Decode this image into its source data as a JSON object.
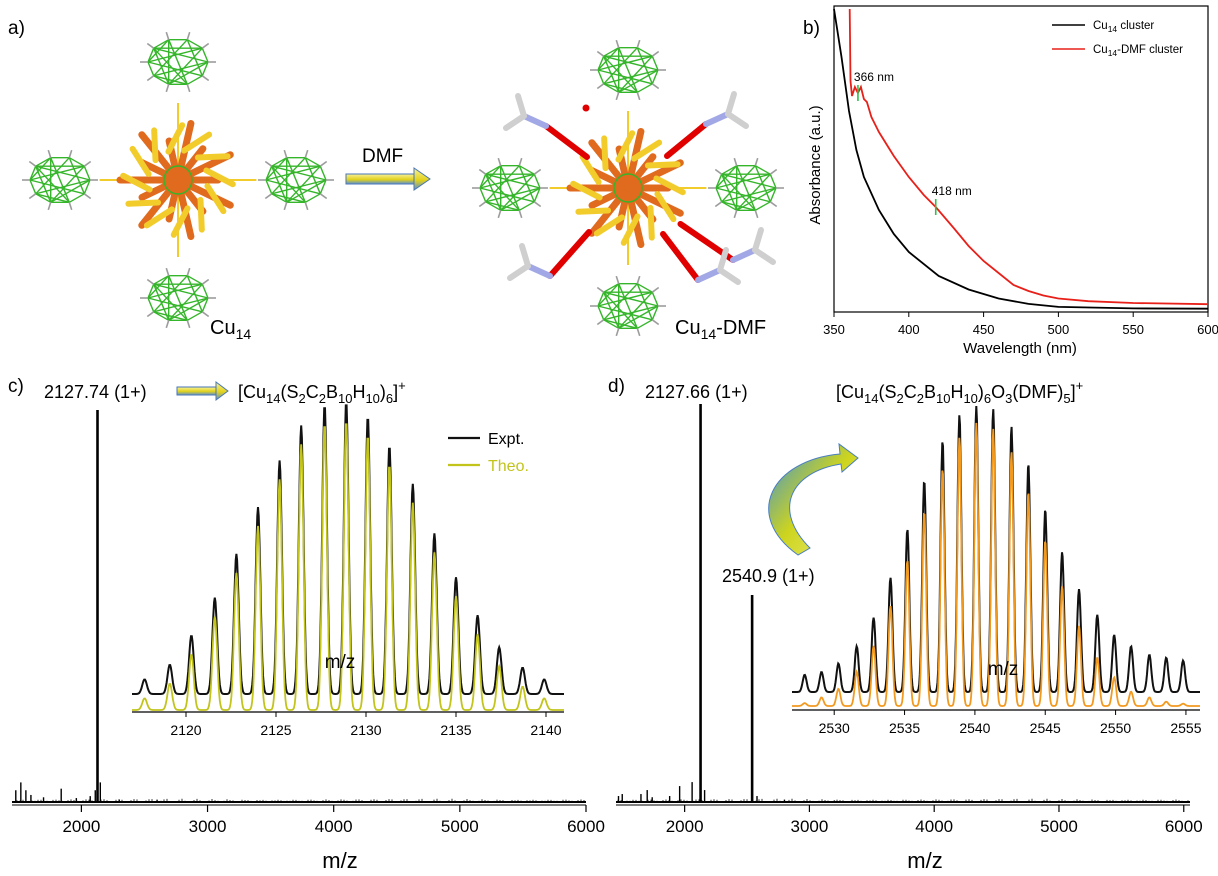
{
  "panel_labels": {
    "a": "a)",
    "b": "b)",
    "c": "c)",
    "d": "d)"
  },
  "panel_a": {
    "left_label_main": "Cu",
    "left_label_sub": "14",
    "arrow_label": "DMF",
    "right_label_main": "Cu",
    "right_label_sub": "14",
    "right_label_suffix": "-DMF",
    "colors": {
      "copper": "#e06a1e",
      "sulfur": "#f2cc2a",
      "boron": "#35b52a",
      "carbon": "#9c9c9c",
      "oxygen": "#e00000",
      "nitrogen": "#a2a8e6"
    }
  },
  "chart_data": [
    {
      "id": "b",
      "type": "line",
      "xlabel": "Wavelength (nm)",
      "ylabel": "Absorbance (a.u.)",
      "xlim": [
        350,
        600
      ],
      "ylim": [
        0,
        1
      ],
      "xticks": [
        350,
        400,
        450,
        500,
        550,
        600
      ],
      "legend_position": "top-right",
      "series": [
        {
          "name": "Cu14 cluster",
          "name_main": "Cu",
          "name_sub": "14",
          "name_rest": " cluster",
          "color": "#000000",
          "x": [
            350,
            355,
            360,
            365,
            370,
            380,
            390,
            400,
            420,
            440,
            460,
            480,
            500,
            550,
            600
          ],
          "y": [
            1.0,
            0.84,
            0.66,
            0.53,
            0.44,
            0.33,
            0.25,
            0.19,
            0.11,
            0.065,
            0.035,
            0.017,
            0.007,
            0.002,
            0.001
          ]
        },
        {
          "name": "Cu14-DMF cluster",
          "name_main": "Cu",
          "name_sub": "14",
          "name_rest": "-DMF cluster",
          "color": "#e8201a",
          "x": [
            360.5,
            361,
            362,
            364,
            366,
            368,
            370,
            372,
            375,
            380,
            390,
            400,
            410,
            418,
            430,
            440,
            450,
            460,
            470,
            480,
            490,
            500,
            520,
            550,
            600
          ],
          "y": [
            1.0,
            0.76,
            0.71,
            0.74,
            0.72,
            0.74,
            0.7,
            0.69,
            0.64,
            0.59,
            0.51,
            0.44,
            0.38,
            0.34,
            0.27,
            0.21,
            0.16,
            0.12,
            0.08,
            0.06,
            0.045,
            0.035,
            0.026,
            0.02,
            0.016
          ]
        }
      ],
      "annotations": [
        {
          "text": "366 nm",
          "x": 366
        },
        {
          "text": "418 nm",
          "x": 418
        }
      ]
    },
    {
      "id": "c",
      "type": "line",
      "xlabel": "m/z",
      "xlim": [
        1450,
        6000
      ],
      "xticks": [
        2000,
        3000,
        4000,
        5000,
        6000
      ],
      "peak_label": "2127.74 (1+)",
      "formula": {
        "parts": [
          [
            "[Cu",
            "n"
          ],
          [
            "14",
            "sub"
          ],
          [
            "(S",
            "n"
          ],
          [
            "2",
            "sub"
          ],
          [
            "C",
            "n"
          ],
          [
            "2",
            "sub"
          ],
          [
            "B",
            "n"
          ],
          [
            "10",
            "sub"
          ],
          [
            "H",
            "n"
          ],
          [
            "10",
            "sub"
          ],
          [
            ")",
            "n"
          ],
          [
            "6",
            "sub"
          ],
          [
            "]",
            "n"
          ],
          [
            "+",
            "sup"
          ]
        ]
      },
      "peaks": [
        [
          1480,
          0.03
        ],
        [
          1520,
          0.05
        ],
        [
          1560,
          0.03
        ],
        [
          1600,
          0.018
        ],
        [
          1700,
          0.012
        ],
        [
          1840,
          0.034
        ],
        [
          1960,
          0.01
        ],
        [
          2070,
          0.015
        ],
        [
          2110,
          0.03
        ],
        [
          2127.74,
          1.0
        ],
        [
          2150,
          0.05
        ],
        [
          2300,
          0.006
        ],
        [
          2600,
          0.006
        ]
      ],
      "inset": {
        "xlabel": "m/z",
        "xlim": [
          2117,
          2141
        ],
        "xticks": [
          2120,
          2125,
          2130,
          2135,
          2140
        ],
        "legend": [
          {
            "name": "Expt.",
            "color": "#111111"
          },
          {
            "name": "Theo.",
            "color": "#c2c41c"
          }
        ],
        "x": [
          2117.7,
          2119.1,
          2120.3,
          2121.6,
          2122.8,
          2124.0,
          2125.2,
          2126.4,
          2127.7,
          2128.9,
          2130.1,
          2131.3,
          2132.6,
          2133.8,
          2135.0,
          2136.2,
          2137.4,
          2138.7,
          2139.9
        ],
        "expt": [
          0.05,
          0.1,
          0.2,
          0.33,
          0.48,
          0.64,
          0.8,
          0.92,
          0.99,
          1.0,
          0.95,
          0.85,
          0.72,
          0.55,
          0.4,
          0.27,
          0.16,
          0.09,
          0.05
        ],
        "theo": [
          0.04,
          0.09,
          0.19,
          0.32,
          0.47,
          0.63,
          0.79,
          0.91,
          0.98,
          0.99,
          0.94,
          0.84,
          0.71,
          0.54,
          0.39,
          0.26,
          0.15,
          0.08,
          0.04
        ],
        "colors": {
          "expt": "#111111",
          "theo": "#c2c41c"
        }
      }
    },
    {
      "id": "d",
      "type": "line",
      "xlabel": "m/z",
      "xlim": [
        1450,
        6050
      ],
      "xticks": [
        2000,
        3000,
        4000,
        5000,
        6000
      ],
      "peak_label_1": "2127.66 (1+)",
      "peak_label_2": "2540.9 (1+)",
      "formula": {
        "parts": [
          [
            "[Cu",
            "n"
          ],
          [
            "14",
            "sub"
          ],
          [
            "(S",
            "n"
          ],
          [
            "2",
            "sub"
          ],
          [
            "C",
            "n"
          ],
          [
            "2",
            "sub"
          ],
          [
            "B",
            "n"
          ],
          [
            "10",
            "sub"
          ],
          [
            "H",
            "n"
          ],
          [
            "10",
            "sub"
          ],
          [
            ")",
            "n"
          ],
          [
            "6",
            "sub"
          ],
          [
            "O",
            "n"
          ],
          [
            "3",
            "sub"
          ],
          [
            "(DMF)",
            "n"
          ],
          [
            "5",
            "sub"
          ],
          [
            "]",
            "n"
          ],
          [
            "+",
            "sup"
          ]
        ]
      },
      "peaks": [
        [
          1470,
          0.015
        ],
        [
          1500,
          0.02
        ],
        [
          1650,
          0.02
        ],
        [
          1700,
          0.03
        ],
        [
          1740,
          0.012
        ],
        [
          1880,
          0.015
        ],
        [
          1960,
          0.04
        ],
        [
          2060,
          0.05
        ],
        [
          2127.66,
          1.0
        ],
        [
          2160,
          0.03
        ],
        [
          2540.9,
          0.52
        ],
        [
          2580,
          0.015
        ],
        [
          2800,
          0.006
        ],
        [
          3200,
          0.004
        ]
      ],
      "inset": {
        "xlabel": "m/z",
        "xlim": [
          2527,
          2556
        ],
        "xticks": [
          2530,
          2535,
          2540,
          2545,
          2550,
          2555
        ],
        "x": [
          2527.9,
          2529.1,
          2530.3,
          2531.6,
          2532.8,
          2534.0,
          2535.2,
          2536.4,
          2537.7,
          2538.9,
          2540.1,
          2541.3,
          2542.6,
          2543.8,
          2545.0,
          2546.2,
          2547.4,
          2548.7,
          2549.9,
          2551.1,
          2552.4,
          2553.6,
          2554.8
        ],
        "expt": [
          0.06,
          0.07,
          0.1,
          0.16,
          0.26,
          0.4,
          0.57,
          0.74,
          0.88,
          0.97,
          1.0,
          0.99,
          0.93,
          0.8,
          0.64,
          0.49,
          0.36,
          0.27,
          0.2,
          0.16,
          0.13,
          0.12,
          0.11
        ],
        "theo": [
          0.01,
          0.03,
          0.06,
          0.12,
          0.21,
          0.35,
          0.51,
          0.68,
          0.83,
          0.94,
          0.99,
          0.97,
          0.89,
          0.75,
          0.58,
          0.42,
          0.28,
          0.17,
          0.1,
          0.05,
          0.03,
          0.015,
          0.008
        ],
        "colors": {
          "expt": "#111111",
          "theo": "#f29a20"
        }
      }
    }
  ]
}
